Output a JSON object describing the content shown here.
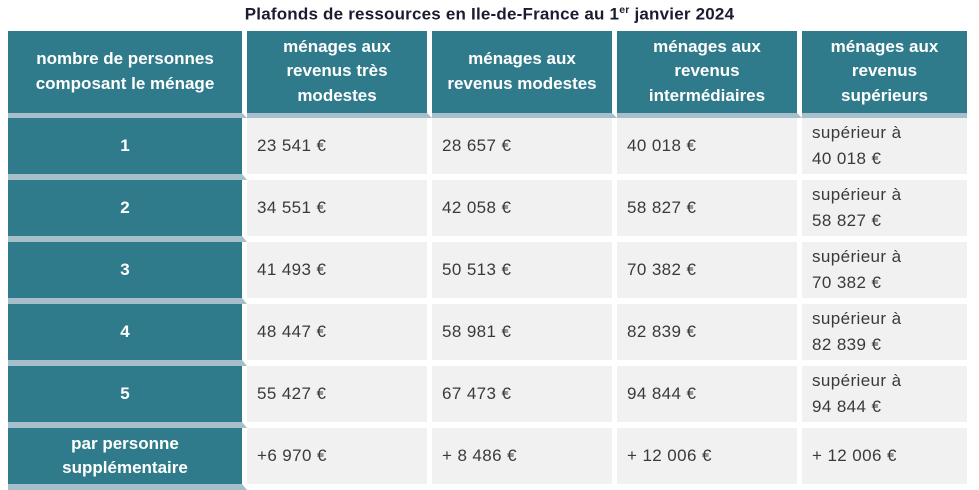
{
  "title": {
    "part1": "Plafonds de ressources en Ile-de-France au 1",
    "sup": "er",
    "part2": " janvier 2024"
  },
  "table": {
    "columns": [
      "nombre de personnes\ncomposant le ménage",
      "ménages aux\nrevenus très\nmodestes",
      "ménages aux\nrevenus modestes",
      "ménages aux revenus\nintermédiaires",
      "ménages aux\nrevenus supérieurs"
    ],
    "rows": [
      {
        "label": "1",
        "values": [
          "23 541 €",
          "28 657 €",
          "40 018 €",
          "supérieur à\n40 018 €"
        ]
      },
      {
        "label": "2",
        "values": [
          "34 551 €",
          "42 058 €",
          "58 827 €",
          "supérieur à\n58 827 €"
        ]
      },
      {
        "label": "3",
        "values": [
          "41 493 €",
          "50 513 €",
          "70 382 €",
          "supérieur à\n70 382 €"
        ]
      },
      {
        "label": "4",
        "values": [
          "48 447 €",
          "58 981 €",
          "82 839 €",
          "supérieur à\n82 839 €"
        ]
      },
      {
        "label": "5",
        "values": [
          "55 427 €",
          "67 473 €",
          "94 844 €",
          "supérieur à\n94 844 €"
        ]
      },
      {
        "label": "par personne\nsupplémentaire",
        "values": [
          "+6 970 €",
          "+ 8 486 €",
          "+ 12 006 €",
          "+ 12 006 €"
        ]
      }
    ]
  },
  "colors": {
    "teal": "#2f7b8b",
    "sep": "#a6bfca",
    "cellbg": "#f1f1f1",
    "text": "#3a3a3a",
    "title": "#1c1c30",
    "gutter": "#ffffff"
  },
  "chart_data": {
    "type": "table",
    "title": "Plafonds de ressources en Ile-de-France au 1er janvier 2024",
    "columns": [
      "nombre de personnes composant le ménage",
      "ménages aux revenus très modestes",
      "ménages aux revenus modestes",
      "ménages aux revenus intermédiaires",
      "ménages aux revenus supérieurs"
    ],
    "rows": [
      [
        "1",
        "23 541 €",
        "28 657 €",
        "40 018 €",
        "supérieur à 40 018 €"
      ],
      [
        "2",
        "34 551 €",
        "42 058 €",
        "58 827 €",
        "supérieur à 58 827 €"
      ],
      [
        "3",
        "41 493 €",
        "50 513 €",
        "70 382 €",
        "supérieur à 70 382 €"
      ],
      [
        "4",
        "48 447 €",
        "58 981 €",
        "82 839 €",
        "supérieur à 82 839 €"
      ],
      [
        "5",
        "55 427 €",
        "67 473 €",
        "94 844 €",
        "supérieur à 94 844 €"
      ],
      [
        "par personne supplémentaire",
        "+6 970 €",
        "+ 8 486 €",
        "+ 12 006 €",
        "+ 12 006 €"
      ]
    ]
  }
}
